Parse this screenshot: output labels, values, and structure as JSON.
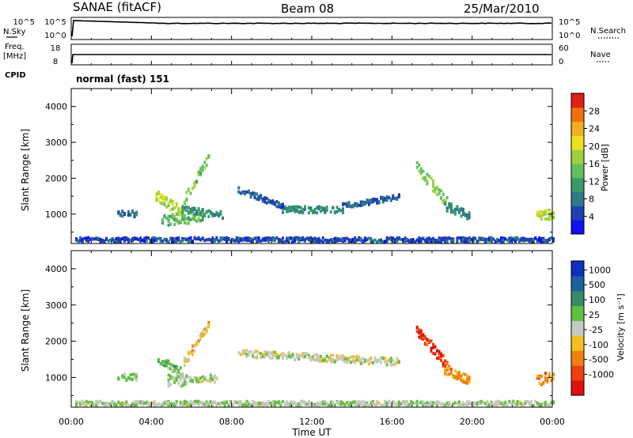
{
  "header": {
    "station": "SANAE (fitACF)",
    "beam": "Beam 08",
    "date": "25/Mar/2010"
  },
  "aux_panels": {
    "nsky_label": "N.Sky",
    "nsky_ticks": [
      "10^5",
      "10^0"
    ],
    "nsearch_label": "N.Search",
    "freq_label_line1": "Freq.",
    "freq_label_line2": "[MHz]",
    "freq_ticks": [
      "18",
      "8"
    ],
    "nave_label": "Nave",
    "nave_ticks": [
      "60",
      "0"
    ],
    "cpid_label": "CPID",
    "cpid_value": "normal (fast) 151"
  },
  "colorbars": {
    "power": {
      "label": "Power [dB]",
      "ticks": [
        "28",
        "24",
        "20",
        "16",
        "12",
        "8",
        "4"
      ],
      "colors": [
        "#1010f0",
        "#2040b0",
        "#2e7a8a",
        "#3a9a6a",
        "#60c060",
        "#a0d040",
        "#f0e020",
        "#f0b020",
        "#f07010",
        "#e02010"
      ]
    },
    "velocity": {
      "label": "Velocity [m s⁻¹]",
      "ticks": [
        "1000",
        "500",
        "100",
        "25",
        "-25",
        "-100",
        "-500",
        "-1000"
      ],
      "colors": [
        "#1030c0",
        "#2060a0",
        "#3a8a6a",
        "#60c040",
        "#c8c8c0",
        "#f0c020",
        "#f08010",
        "#f04010",
        "#e01010"
      ]
    }
  },
  "axes": {
    "ylabel": "Slant Range [km]",
    "xlabel": "Time UT",
    "x_ticks": [
      "00:00",
      "04:00",
      "08:00",
      "12:00",
      "16:00",
      "20:00",
      "00:00"
    ],
    "y_ticks": [
      "4000",
      "3000",
      "2000",
      "1000"
    ]
  },
  "chart_data": [
    {
      "type": "heatmap",
      "name": "power",
      "xlim": [
        0,
        24
      ],
      "ylim": [
        180,
        4500
      ],
      "xlabel": "Time UT",
      "ylabel": "Slant Range [km]",
      "clim": [
        0,
        32
      ],
      "features": [
        {
          "kind": "band",
          "t": [
            2.3,
            3.2
          ],
          "r0": [
            1000,
            1000
          ],
          "w": 200,
          "v": 8
        },
        {
          "kind": "band",
          "t": [
            4.2,
            5.5
          ],
          "r0": [
            1500,
            1000
          ],
          "w": 300,
          "v": 18
        },
        {
          "kind": "band",
          "t": [
            4.5,
            6.5
          ],
          "r0": [
            800,
            900
          ],
          "w": 300,
          "v": 14
        },
        {
          "kind": "band",
          "t": [
            5.5,
            7.5
          ],
          "r0": [
            1100,
            950
          ],
          "w": 200,
          "v": 10
        },
        {
          "kind": "band",
          "t": [
            5.6,
            6.8
          ],
          "r0": [
            1400,
            2500
          ],
          "w": 250,
          "v": 15
        },
        {
          "kind": "band",
          "t": [
            8.3,
            10.5
          ],
          "r0": [
            1650,
            1200
          ],
          "w": 150,
          "v": 6
        },
        {
          "kind": "band",
          "t": [
            10.5,
            13.5
          ],
          "r0": [
            1100,
            1100
          ],
          "w": 180,
          "v": 10
        },
        {
          "kind": "band",
          "t": [
            13.5,
            16.3
          ],
          "r0": [
            1200,
            1450
          ],
          "w": 150,
          "v": 6
        },
        {
          "kind": "band",
          "t": [
            17.2,
            18.7
          ],
          "r0": [
            2300,
            1300
          ],
          "w": 300,
          "v": 16
        },
        {
          "kind": "band",
          "t": [
            18.6,
            19.8
          ],
          "r0": [
            1200,
            950
          ],
          "w": 250,
          "v": 10
        },
        {
          "kind": "band",
          "t": [
            23.2,
            24
          ],
          "r0": [
            900,
            1000
          ],
          "w": 300,
          "v": 18
        },
        {
          "kind": "band",
          "t": [
            0.2,
            24
          ],
          "r0": [
            260,
            260
          ],
          "w": 120,
          "v": 5
        }
      ]
    },
    {
      "type": "heatmap",
      "name": "velocity",
      "xlim": [
        0,
        24
      ],
      "ylim": [
        180,
        4500
      ],
      "xlabel": "Time UT",
      "ylabel": "Slant Range [km]",
      "clim": [
        -1000,
        1000
      ],
      "features": [
        {
          "kind": "band",
          "t": [
            2.3,
            3.2
          ],
          "r0": [
            1000,
            1000
          ],
          "w": 200,
          "v": 150
        },
        {
          "kind": "band",
          "t": [
            4.3,
            5.5
          ],
          "r0": [
            1500,
            1100
          ],
          "w": 250,
          "v": 200
        },
        {
          "kind": "band",
          "t": [
            4.8,
            5.7
          ],
          "r0": [
            900,
            900
          ],
          "w": 350,
          "v": 60
        },
        {
          "kind": "band",
          "t": [
            5.6,
            7.2
          ],
          "r0": [
            950,
            950
          ],
          "w": 200,
          "v": 0
        },
        {
          "kind": "band",
          "t": [
            5.6,
            6.8
          ],
          "r0": [
            1400,
            2400
          ],
          "w": 250,
          "v": -200
        },
        {
          "kind": "band",
          "t": [
            8.3,
            16.3
          ],
          "r0": [
            1650,
            1400
          ],
          "w": 200,
          "v": 0
        },
        {
          "kind": "band",
          "t": [
            17.2,
            18.7
          ],
          "r0": [
            2300,
            1300
          ],
          "w": 300,
          "v": -700
        },
        {
          "kind": "band",
          "t": [
            18.6,
            19.8
          ],
          "r0": [
            1200,
            900
          ],
          "w": 250,
          "v": -400
        },
        {
          "kind": "band",
          "t": [
            23.2,
            24
          ],
          "r0": [
            900,
            1000
          ],
          "w": 300,
          "v": -400
        },
        {
          "kind": "band",
          "t": [
            0.2,
            24
          ],
          "r0": [
            260,
            260
          ],
          "w": 120,
          "v": 60
        }
      ]
    }
  ]
}
